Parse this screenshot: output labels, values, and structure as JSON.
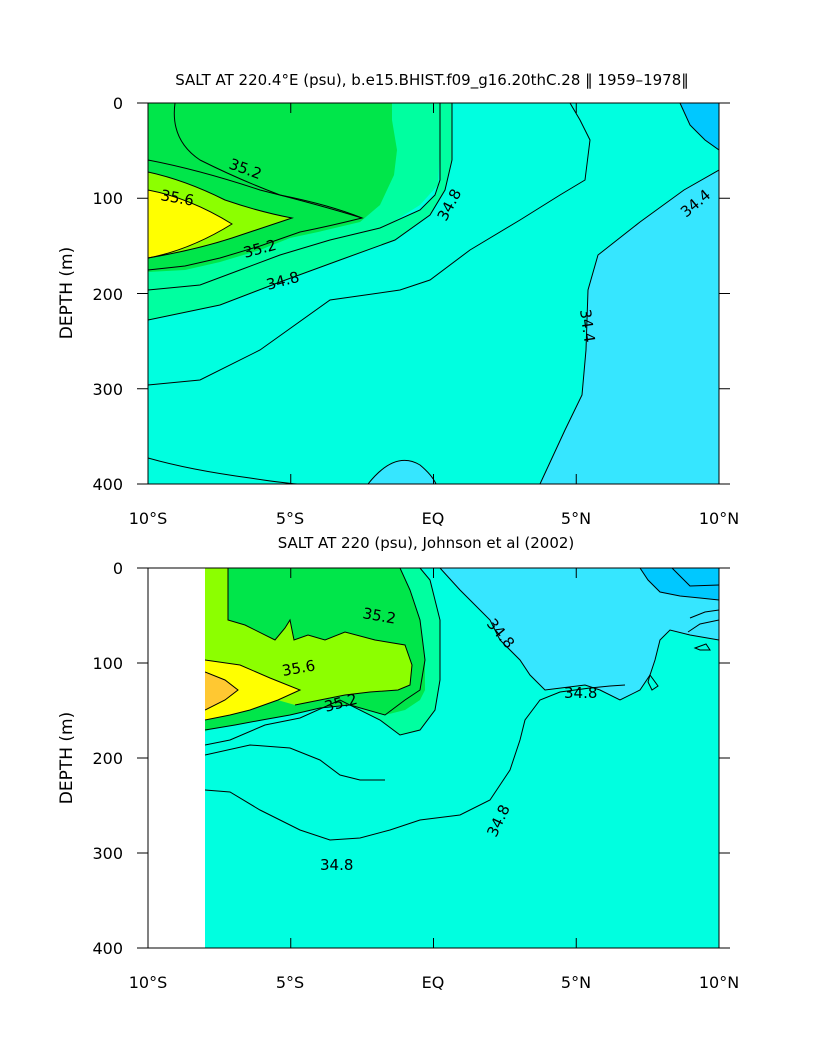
{
  "chart_data": [
    {
      "type": "contour",
      "title": "SALT AT 220.4°E (psu), b.e15.BHIST.f09_g16.20thC.28 ‖ 1959–1978‖",
      "ylabel": "DEPTH (m)",
      "xlabel": "",
      "x_ticklabels": [
        "10°S",
        "5°S",
        "EQ",
        "5°N",
        "10°N"
      ],
      "x_ticks": [
        -10,
        -5,
        0,
        5,
        10
      ],
      "xlim": [
        -10,
        10
      ],
      "y_ticklabels": [
        "0",
        "100",
        "200",
        "300",
        "400"
      ],
      "y_ticks": [
        0,
        100,
        200,
        300,
        400
      ],
      "ylim": [
        0,
        400
      ],
      "y_inverted": true,
      "contour_levels": [
        34.2,
        34.4,
        34.6,
        34.8,
        35.0,
        35.2,
        35.4,
        35.6,
        35.8
      ],
      "contour_labels": [
        {
          "text": "35.2",
          "x": -6.6,
          "y": 60
        },
        {
          "text": "35.6",
          "x": -9.1,
          "y": 100
        },
        {
          "text": "35.2",
          "x": -5.0,
          "y": 150
        },
        {
          "text": "34.8",
          "x": -5.6,
          "y": 180
        },
        {
          "text": "34.8",
          "x": 1.0,
          "y": 110
        },
        {
          "text": "34.4",
          "x": 8.5,
          "y": 100
        },
        {
          "text": "34.4",
          "x": 4.7,
          "y": 240
        }
      ]
    },
    {
      "type": "contour",
      "title": "SALT AT 220 (psu), Johnson et al (2002)",
      "ylabel": "DEPTH (m)",
      "xlabel": "",
      "x_ticklabels": [
        "10°S",
        "5°S",
        "EQ",
        "5°N",
        "10°N"
      ],
      "x_ticks": [
        -10,
        -5,
        0,
        5,
        10
      ],
      "xlim": [
        -10,
        10
      ],
      "y_ticklabels": [
        "0",
        "100",
        "200",
        "300",
        "400"
      ],
      "y_ticks": [
        0,
        100,
        200,
        300,
        400
      ],
      "ylim": [
        0,
        400
      ],
      "y_inverted": true,
      "data_xrange": [
        -8,
        10
      ],
      "contour_levels": [
        34.2,
        34.4,
        34.6,
        34.8,
        35.0,
        35.2,
        35.4,
        35.6,
        35.8
      ],
      "contour_labels": [
        {
          "text": "35.2",
          "x": -2.2,
          "y": 40
        },
        {
          "text": "35.6",
          "x": -4.5,
          "y": 110
        },
        {
          "text": "35.2",
          "x": -3.2,
          "y": 140
        },
        {
          "text": "34.8",
          "x": 2.0,
          "y": 60
        },
        {
          "text": "34.8",
          "x": 4.5,
          "y": 120
        },
        {
          "text": "34.8",
          "x": 2.4,
          "y": 270
        },
        {
          "text": "34.8",
          "x": -2.5,
          "y": 340
        }
      ]
    }
  ],
  "colors": {
    "c1": "#00c8ff",
    "c2": "#36e6ff",
    "c3": "#00ffe0",
    "c4": "#00ffa0",
    "c5": "#00e64a",
    "c6": "#8cff00",
    "c7": "#ffff00",
    "c8": "#ffc832",
    "line": "#000000",
    "background": "#ffffff"
  }
}
